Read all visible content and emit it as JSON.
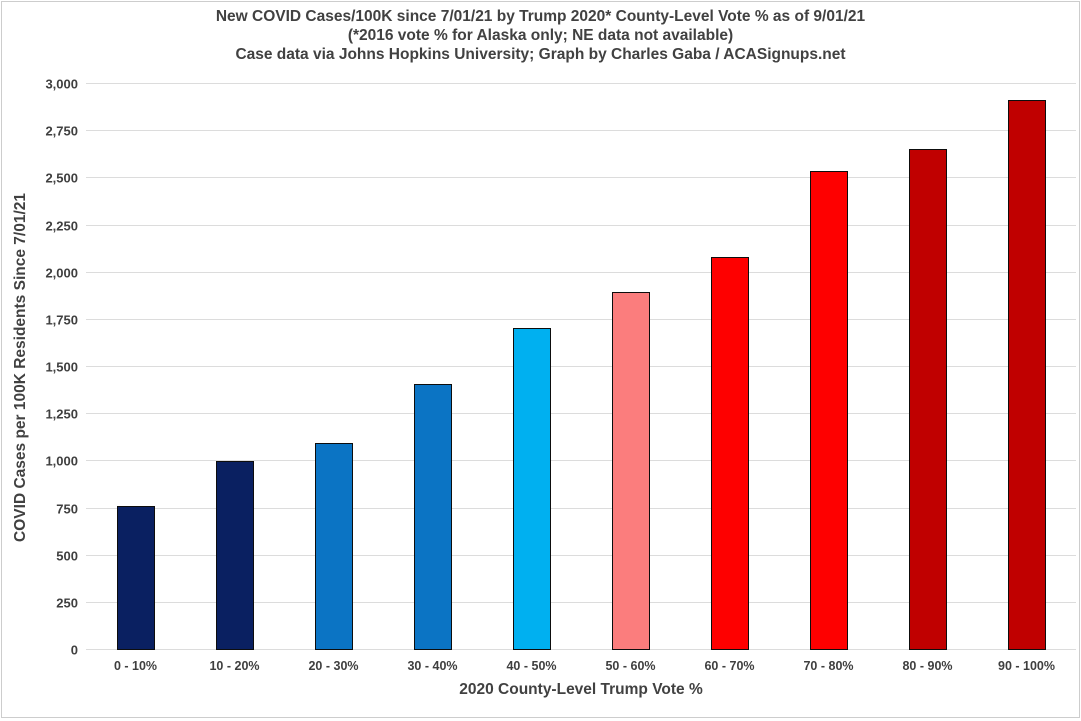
{
  "page": {
    "background": "#ffffff",
    "frame_border_color": "#cdcdcd",
    "text_color": "#414141"
  },
  "title": {
    "line1": "New COVID Cases/100K since 7/01/21 by Trump 2020* County-Level Vote % as of 9/01/21",
    "line2": "(*2016 vote % for Alaska only; NE data not available)",
    "line3": "Case data via Johns Hopkins University; Graph by Charles Gaba / ACASignups.net"
  },
  "chart_data": {
    "type": "bar",
    "title": "New COVID Cases/100K since 7/01/21 by Trump 2020* County-Level Vote % as of 9/01/21",
    "subtitle1": "(*2016 vote % for Alaska only; NE data not available)",
    "subtitle2": "Case data via Johns Hopkins University; Graph by Charles Gaba / ACASignups.net",
    "categories": [
      "0 - 10%",
      "10 - 20%",
      "20 - 30%",
      "30 - 40%",
      "40 - 50%",
      "50 - 60%",
      "60 - 70%",
      "70 - 80%",
      "80 - 90%",
      "90 - 100%"
    ],
    "values": [
      765,
      1000,
      1095,
      1410,
      1705,
      1900,
      2085,
      2540,
      2655,
      2915
    ],
    "bar_colors": [
      "#0a2061",
      "#0a2061",
      "#0b74c4",
      "#0b74c4",
      "#00b0f0",
      "#fb7d7d",
      "#fe0000",
      "#fe0000",
      "#c00000",
      "#c00000"
    ],
    "bar_outline_color": "#0d0d0d",
    "xlabel": "2020 County-Level Trump Vote %",
    "ylabel": "COVID Cases per 100K Residents Since 7/01/21",
    "ylim": [
      0,
      3000
    ],
    "ytick_interval": 250,
    "ytick_labels": [
      "0",
      "250",
      "500",
      "750",
      "1,000",
      "1,250",
      "1,500",
      "1,750",
      "2,000",
      "2,250",
      "2,500",
      "2,750",
      "3,000"
    ],
    "grid": "horizontal",
    "gridline_color": "#dcdcdc",
    "legend": "none"
  }
}
